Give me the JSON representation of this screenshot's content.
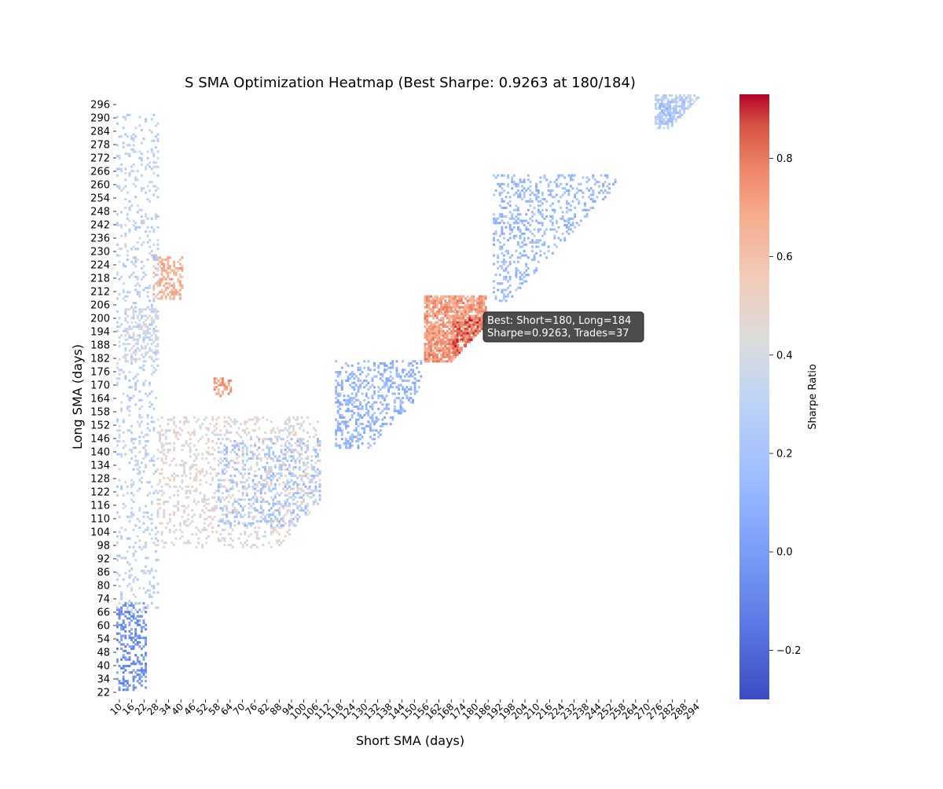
{
  "chart_data": {
    "type": "heatmap",
    "title": "S SMA Optimization Heatmap (Best Sharpe: 0.9263 at 180/184)",
    "xlabel": "Short SMA (days)",
    "ylabel": "Long SMA (days)",
    "x_range_days": [
      10,
      299
    ],
    "y_range_days": [
      20,
      299
    ],
    "x_ticks": [
      "10",
      "16",
      "22",
      "28",
      "34",
      "40",
      "46",
      "52",
      "58",
      "64",
      "70",
      "76",
      "82",
      "88",
      "94",
      "100",
      "106",
      "112",
      "118",
      "124",
      "130",
      "132",
      "138",
      "144",
      "150",
      "156",
      "162",
      "168",
      "174",
      "180",
      "186",
      "192",
      "198",
      "204",
      "210",
      "216",
      "224",
      "232",
      "238",
      "244",
      "252",
      "258",
      "264",
      "270",
      "276",
      "282",
      "288",
      "294"
    ],
    "y_ticks": [
      "296",
      "290",
      "284",
      "278",
      "272",
      "266",
      "260",
      "254",
      "248",
      "242",
      "236",
      "230",
      "224",
      "218",
      "212",
      "206",
      "200",
      "194",
      "188",
      "182",
      "176",
      "170",
      "164",
      "158",
      "152",
      "146",
      "140",
      "134",
      "128",
      "122",
      "116",
      "110",
      "104",
      "98",
      "92",
      "86",
      "80",
      "74",
      "66",
      "60",
      "54",
      "48",
      "40",
      "34",
      "22"
    ],
    "colorbar": {
      "label": "Sharpe Ratio",
      "min": -0.3,
      "max": 0.93,
      "ticks": [
        "0.8",
        "0.6",
        "0.4",
        "0.2",
        "0.0",
        "−0.2"
      ],
      "tick_values": [
        0.8,
        0.6,
        0.4,
        0.2,
        0.0,
        -0.2
      ]
    },
    "colors": {
      "low": "#3b4cc0",
      "mid": "#dddddd",
      "high": "#b40426"
    },
    "best": {
      "short": 180,
      "long": 184,
      "sharpe": 0.9263,
      "trades": 37
    },
    "annotation": {
      "line1": "Best: Short=180, Long=184",
      "line2": "Sharpe=0.9263, Trades=37"
    },
    "clusters": [
      {
        "region": "best",
        "x": [
          162,
          192
        ],
        "y": [
          176,
          206
        ],
        "value": 0.72,
        "density": 0.8
      },
      {
        "region": "best-high",
        "x": [
          176,
          190
        ],
        "y": [
          180,
          196
        ],
        "value": 0.82,
        "density": 0.7
      },
      {
        "region": "left-mid",
        "x": [
          28,
          42
        ],
        "y": [
          205,
          224
        ],
        "value": 0.65,
        "density": 0.45
      },
      {
        "region": "left-mid2",
        "x": [
          58,
          66
        ],
        "y": [
          160,
          168
        ],
        "value": 0.7,
        "density": 0.5
      },
      {
        "region": "left-upper",
        "x": [
          14,
          30
        ],
        "y": [
          176,
          200
        ],
        "value": 0.4,
        "density": 0.35
      },
      {
        "region": "low-left",
        "x": [
          10,
          24
        ],
        "y": [
          24,
          64
        ],
        "value": -0.05,
        "density": 0.35
      },
      {
        "region": "diag-blue",
        "x": [
          118,
          160
        ],
        "y": [
          136,
          176
        ],
        "value": 0.12,
        "density": 0.3
      },
      {
        "region": "diag-upper",
        "x": [
          196,
          262
        ],
        "y": [
          204,
          262
        ],
        "value": 0.15,
        "density": 0.25
      },
      {
        "region": "top-right",
        "x": [
          276,
          299
        ],
        "y": [
          284,
          299
        ],
        "value": 0.3,
        "density": 0.6
      },
      {
        "region": "top-right-blue",
        "x": [
          278,
          290
        ],
        "y": [
          286,
          296
        ],
        "value": 0.18,
        "density": 0.5
      },
      {
        "region": "mid-scatter",
        "x": [
          30,
          110
        ],
        "y": [
          90,
          150
        ],
        "value": 0.45,
        "density": 0.2
      },
      {
        "region": "mid-scatter-blue",
        "x": [
          60,
          110
        ],
        "y": [
          100,
          140
        ],
        "value": 0.2,
        "density": 0.18
      },
      {
        "region": "left-strip",
        "x": [
          10,
          30
        ],
        "y": [
          60,
          290
        ],
        "value": 0.3,
        "density": 0.15
      }
    ]
  }
}
